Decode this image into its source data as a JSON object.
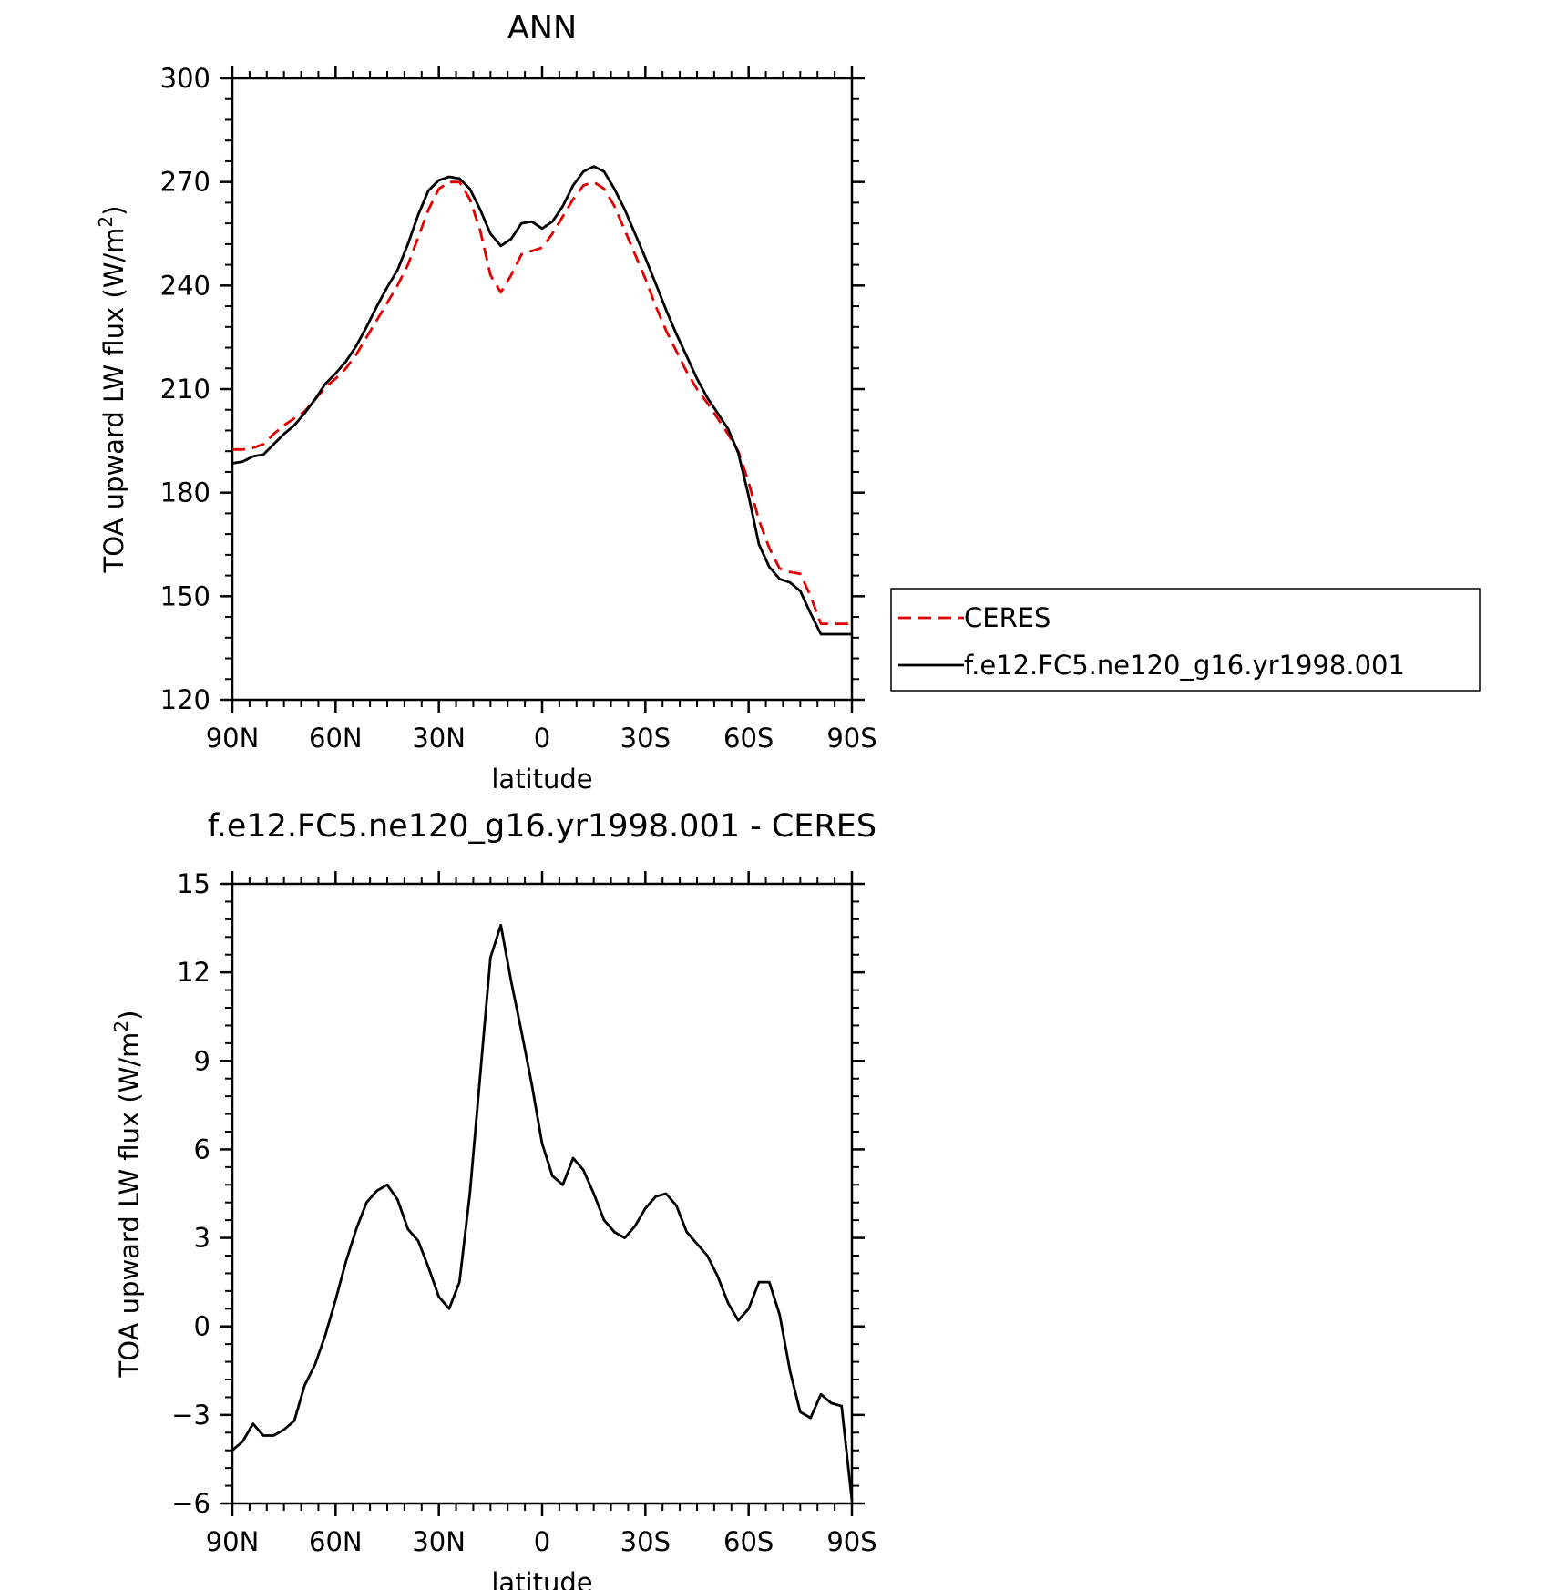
{
  "chart_data": [
    {
      "type": "line",
      "title": "ANN",
      "xlabel": "latitude",
      "ylabel": "TOA upward LW flux (W/m",
      "ylabel_sup": "2",
      "ylabel_close": ")",
      "xlim": [
        90,
        -90
      ],
      "ylim": [
        120,
        300
      ],
      "xticks": [
        90,
        60,
        30,
        0,
        -30,
        -60,
        -90
      ],
      "xtick_labels": [
        "90N",
        "60N",
        "30N",
        "0",
        "30S",
        "60S",
        "90S"
      ],
      "yticks": [
        120,
        150,
        180,
        210,
        240,
        270,
        300
      ],
      "ytick_labels": [
        "120",
        "150",
        "180",
        "210",
        "240",
        "270",
        "300"
      ],
      "grid": false,
      "legend_position": "right",
      "series": [
        {
          "name": "CERES",
          "color": "#e00000",
          "dash": true,
          "x": [
            90,
            87,
            84,
            81,
            78,
            75,
            72,
            69,
            66,
            63,
            60,
            57,
            54,
            51,
            48,
            45,
            42,
            39,
            36,
            33,
            30,
            27,
            24,
            21,
            18,
            15,
            12,
            9,
            6,
            3,
            0,
            -3,
            -6,
            -9,
            -12,
            -15,
            -18,
            -21,
            -24,
            -27,
            -30,
            -33,
            -36,
            -39,
            -42,
            -45,
            -48,
            -51,
            -54,
            -57,
            -60,
            -63,
            -66,
            -69,
            -72,
            -75,
            -78,
            -81,
            -84,
            -87,
            -90
          ],
          "y": [
            192.5,
            192.5,
            193,
            194,
            197,
            199.5,
            201.5,
            203.5,
            207,
            210.5,
            213,
            216,
            220,
            225,
            230,
            235,
            240,
            246,
            254,
            262,
            268,
            270,
            270,
            265,
            256,
            243,
            238,
            243,
            249,
            250,
            251,
            255,
            260,
            265,
            269,
            270,
            268,
            263,
            256,
            249,
            242,
            234,
            227,
            221,
            215,
            210,
            206,
            201.5,
            197,
            192,
            183,
            172,
            164,
            158,
            157,
            156.5,
            150,
            142,
            142,
            142,
            142
          ]
        },
        {
          "name": "f.e12.FC5.ne120_g16.yr1998.001",
          "color": "#000000",
          "dash": false,
          "x": [
            90,
            87,
            84,
            81,
            78,
            75,
            72,
            69,
            66,
            63,
            60,
            57,
            54,
            51,
            48,
            45,
            42,
            39,
            36,
            33,
            30,
            27,
            24,
            21,
            18,
            15,
            12,
            9,
            6,
            3,
            0,
            -3,
            -6,
            -9,
            -12,
            -15,
            -18,
            -21,
            -24,
            -27,
            -30,
            -33,
            -36,
            -39,
            -42,
            -45,
            -48,
            -51,
            -54,
            -57,
            -60,
            -63,
            -66,
            -69,
            -72,
            -75,
            -78,
            -81,
            -84,
            -87,
            -90
          ],
          "y": [
            188.5,
            189,
            190.5,
            191,
            194,
            197,
            199.5,
            203,
            207,
            211.5,
            214.5,
            218,
            222.5,
            228,
            234,
            239.5,
            244.5,
            252,
            260.5,
            267.5,
            270.5,
            271.5,
            271,
            268,
            262,
            255,
            251.5,
            253.5,
            258,
            258.5,
            256.5,
            258.5,
            263,
            269,
            273,
            274.5,
            273,
            268,
            262,
            255,
            248,
            240.5,
            233,
            226,
            219.5,
            213,
            207.5,
            203,
            198.5,
            191.5,
            179,
            165,
            158.5,
            155,
            154,
            151.5,
            145,
            139,
            139,
            139,
            139
          ]
        }
      ]
    },
    {
      "type": "line",
      "title": "f.e12.FC5.ne120_g16.yr1998.001 - CERES",
      "xlabel": "latitude",
      "ylabel": "TOA upward LW flux (W/m",
      "ylabel_sup": "2",
      "ylabel_close": ")",
      "xlim": [
        90,
        -90
      ],
      "ylim": [
        -6,
        15
      ],
      "xticks": [
        90,
        60,
        30,
        0,
        -30,
        -60,
        -90
      ],
      "xtick_labels": [
        "90N",
        "60N",
        "30N",
        "0",
        "30S",
        "60S",
        "90S"
      ],
      "yticks": [
        -6,
        -3,
        0,
        3,
        6,
        9,
        12,
        15
      ],
      "ytick_labels": [
        "-6",
        "-3",
        "0",
        "3",
        "6",
        "9",
        "12",
        "15"
      ],
      "grid": false,
      "series": [
        {
          "color": "#000000",
          "dash": false,
          "x": [
            90,
            87,
            84,
            81,
            78,
            75,
            72,
            69,
            66,
            63,
            60,
            57,
            54,
            51,
            48,
            45,
            42,
            39,
            36,
            33,
            30,
            27,
            24,
            21,
            18,
            15,
            12,
            9,
            6,
            3,
            0,
            -3,
            -6,
            -9,
            -12,
            -15,
            -18,
            -21,
            -24,
            -27,
            -30,
            -33,
            -36,
            -39,
            -42,
            -45,
            -48,
            -51,
            -54,
            -57,
            -60,
            -63,
            -66,
            -69,
            -72,
            -75,
            -78,
            -81,
            -84,
            -87,
            -90
          ],
          "y": [
            -4.2,
            -3.9,
            -3.3,
            -3.7,
            -3.7,
            -3.5,
            -3.2,
            -2.0,
            -1.3,
            -0.3,
            0.9,
            2.2,
            3.3,
            4.2,
            4.6,
            4.8,
            4.3,
            3.3,
            2.9,
            2.0,
            1.0,
            0.6,
            1.5,
            4.5,
            8.5,
            12.5,
            13.6,
            11.7,
            10.0,
            8.2,
            6.2,
            5.1,
            4.8,
            5.7,
            5.3,
            4.5,
            3.6,
            3.2,
            3.0,
            3.4,
            4.0,
            4.4,
            4.5,
            4.1,
            3.2,
            2.8,
            2.4,
            1.7,
            0.8,
            0.2,
            0.6,
            1.5,
            1.5,
            0.4,
            -1.5,
            -2.9,
            -3.1,
            -2.3,
            -2.6,
            -2.7,
            -5.9
          ]
        }
      ]
    }
  ]
}
